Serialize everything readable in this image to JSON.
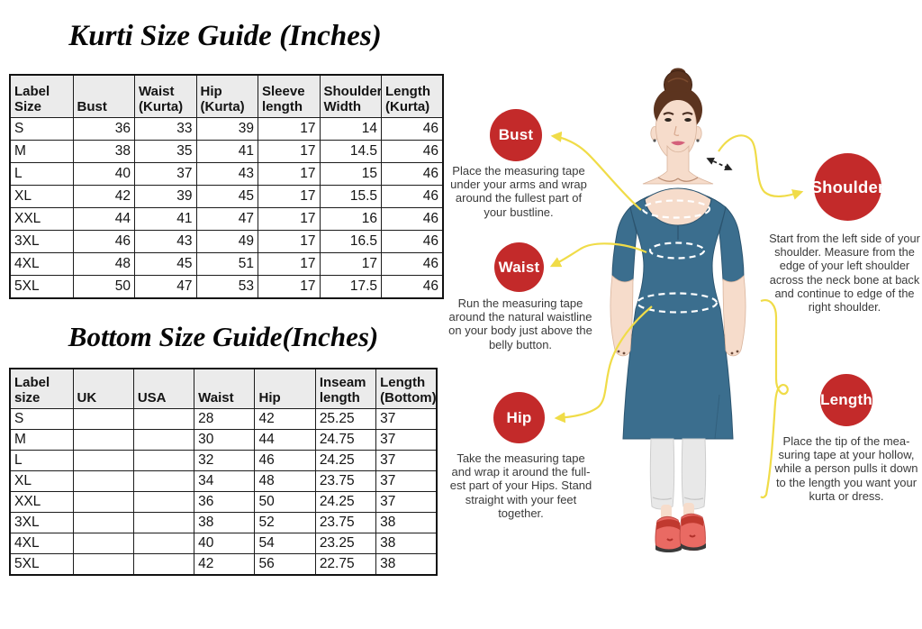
{
  "kurti_table": {
    "title": "Kurti Size Guide (Inches)",
    "headers": [
      "Label\nSize",
      "Bust",
      "Waist\n(Kurta)",
      "Hip\n(Kurta)",
      "Sleeve\nlength",
      "Shoulder\nWidth",
      "Length\n(Kurta)"
    ],
    "rows": [
      [
        "S",
        "36",
        "33",
        "39",
        "17",
        "14",
        "46"
      ],
      [
        "M",
        "38",
        "35",
        "41",
        "17",
        "14.5",
        "46"
      ],
      [
        "L",
        "40",
        "37",
        "43",
        "17",
        "15",
        "46"
      ],
      [
        "XL",
        "42",
        "39",
        "45",
        "17",
        "15.5",
        "46"
      ],
      [
        "XXL",
        "44",
        "41",
        "47",
        "17",
        "16",
        "46"
      ],
      [
        "3XL",
        "46",
        "43",
        "49",
        "17",
        "16.5",
        "46"
      ],
      [
        "4XL",
        "48",
        "45",
        "51",
        "17",
        "17",
        "46"
      ],
      [
        "5XL",
        "50",
        "47",
        "53",
        "17",
        "17.5",
        "46"
      ]
    ]
  },
  "bottom_table": {
    "title": "Bottom Size Guide(Inches)",
    "headers": [
      "Label size",
      "UK",
      "USA",
      "Waist",
      "Hip",
      "Inseam\nlength",
      "Length\n(Bottom)"
    ],
    "rows": [
      [
        "S",
        "",
        "",
        "28",
        "42",
        "25.25",
        "37"
      ],
      [
        "M",
        "",
        "",
        "30",
        "44",
        "24.75",
        "37"
      ],
      [
        "L",
        "",
        "",
        "32",
        "46",
        "24.25",
        "37"
      ],
      [
        "XL",
        "",
        "",
        "34",
        "48",
        "23.75",
        "37"
      ],
      [
        "XXL",
        "",
        "",
        "36",
        "50",
        "24.25",
        "37"
      ],
      [
        "3XL",
        "",
        "",
        "38",
        "52",
        "23.75",
        "38"
      ],
      [
        "4XL",
        "",
        "",
        "40",
        "54",
        "23.25",
        "38"
      ],
      [
        "5XL",
        "",
        "",
        "42",
        "56",
        "22.75",
        "38"
      ]
    ]
  },
  "measure_guide": {
    "badges": {
      "bust": "Bust",
      "waist": "Waist",
      "hip": "Hip",
      "shoulder": "Shoulder",
      "length": "Length"
    },
    "descriptions": {
      "bust": "Place the measuring tape under your arms and wrap around the fullest part of your bustline.",
      "waist": "Run the measuring tape around the natural waistline on your body just above the belly button.",
      "hip": "Take the measuring tape and wrap it around the full-est part of your Hips. Stand straight with your feet together.",
      "shoulder": "Start from the left side of your shoulder. Measure from the edge of your left shoulder across the neck bone at back and continue to edge of the right shoulder.",
      "length": "Place the tip of the mea-suring tape at your hollow, while a person pulls it down to the length you want your kurta or dress."
    },
    "colors": {
      "badge_red": "#C32A2A",
      "connector_yellow": "#F0DC48",
      "kurta_blue": "#3B6E8E"
    }
  }
}
